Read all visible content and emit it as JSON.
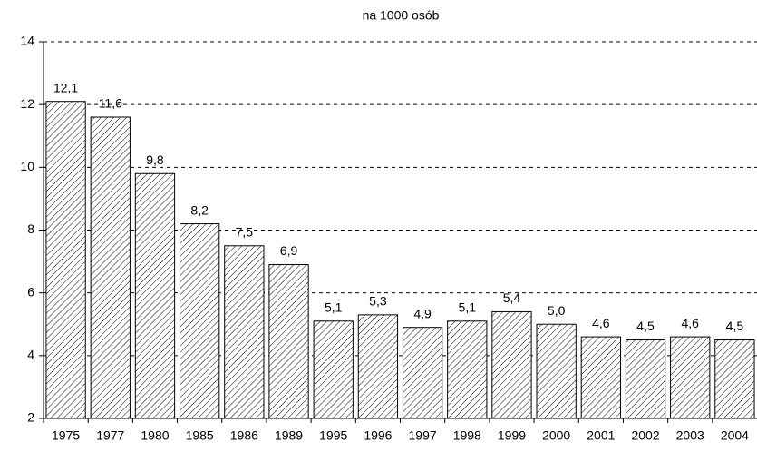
{
  "chart_data": {
    "type": "bar",
    "title": "na 1000 osób",
    "categories": [
      "1975",
      "1977",
      "1980",
      "1985",
      "1986",
      "1989",
      "1995",
      "1996",
      "1997",
      "1998",
      "1999",
      "2000",
      "2001",
      "2002",
      "2003",
      "2004"
    ],
    "values": [
      12.1,
      11.6,
      9.8,
      8.2,
      7.5,
      6.9,
      5.1,
      5.3,
      4.9,
      5.1,
      5.4,
      5.0,
      4.6,
      4.5,
      4.6,
      4.5
    ],
    "value_labels": [
      "12,1",
      "11,6",
      "9,8",
      "8,2",
      "7,5",
      "6,9",
      "5,1",
      "5,3",
      "4,9",
      "5,1",
      "5,4",
      "5,0",
      "4,6",
      "4,5",
      "4,6",
      "4,5"
    ],
    "color": "#000000",
    "ylim": [
      2,
      14
    ],
    "yticks": [
      2,
      4,
      6,
      8,
      10,
      12,
      14
    ],
    "grid": true
  }
}
